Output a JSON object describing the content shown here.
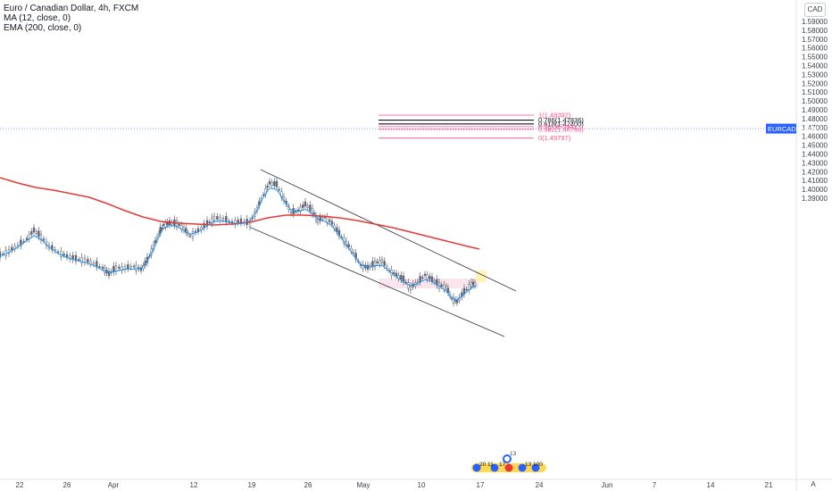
{
  "header": {
    "symbol_line": "Euro / Canadian Dollar, 4h, FXCM",
    "ma_line": "MA (12, close, 0)",
    "ema_line": "EMA (200, close, 0)"
  },
  "currency_button": "CAD",
  "auto_button": "A",
  "colors": {
    "ema": "#e53935",
    "ma": "#2196f3",
    "up": "#2962ff",
    "candle": "#5b6170",
    "fib_pink": "#ff4f8b",
    "fib_black": "#131722",
    "price_badge": "#2962ff",
    "channel": "#3b3f4a"
  },
  "chart_data": {
    "type": "candlestick",
    "symbol": "EURCAD",
    "current_price": "1.46873",
    "price_badge_label": "EURCAD",
    "y_ticks": [
      "1.59000",
      "1.58000",
      "1.57000",
      "1.56000",
      "1.55000",
      "1.54000",
      "1.53000",
      "1.52000",
      "1.51000",
      "1.50000",
      "1.49000",
      "1.48000",
      "1.47000",
      "1.46000",
      "1.45000",
      "1.44000",
      "1.43000",
      "1.42000",
      "1.41000",
      "1.40000",
      "1.39000"
    ],
    "x_ticks": [
      "22",
      "26",
      "Apr",
      "12",
      "19",
      "26",
      "May",
      "10",
      "17",
      "24",
      "Jun",
      "7",
      "14",
      "21"
    ],
    "fib_levels": [
      {
        "label": "1(1.48392)",
        "value": 1.48392
      },
      {
        "label": "0.786(1.47836)",
        "value": 1.47836
      },
      {
        "label": "0.618(1.47400)",
        "value": 1.474
      },
      {
        "label": "0.5(1.47094)",
        "value": 1.47094
      },
      {
        "label": "0.382(1.46788)",
        "value": 1.46788
      },
      {
        "label": "0(1.45797)",
        "value": 1.45797
      }
    ],
    "event_labels": [
      "13",
      "20",
      "11",
      "17",
      "13",
      "100"
    ]
  }
}
